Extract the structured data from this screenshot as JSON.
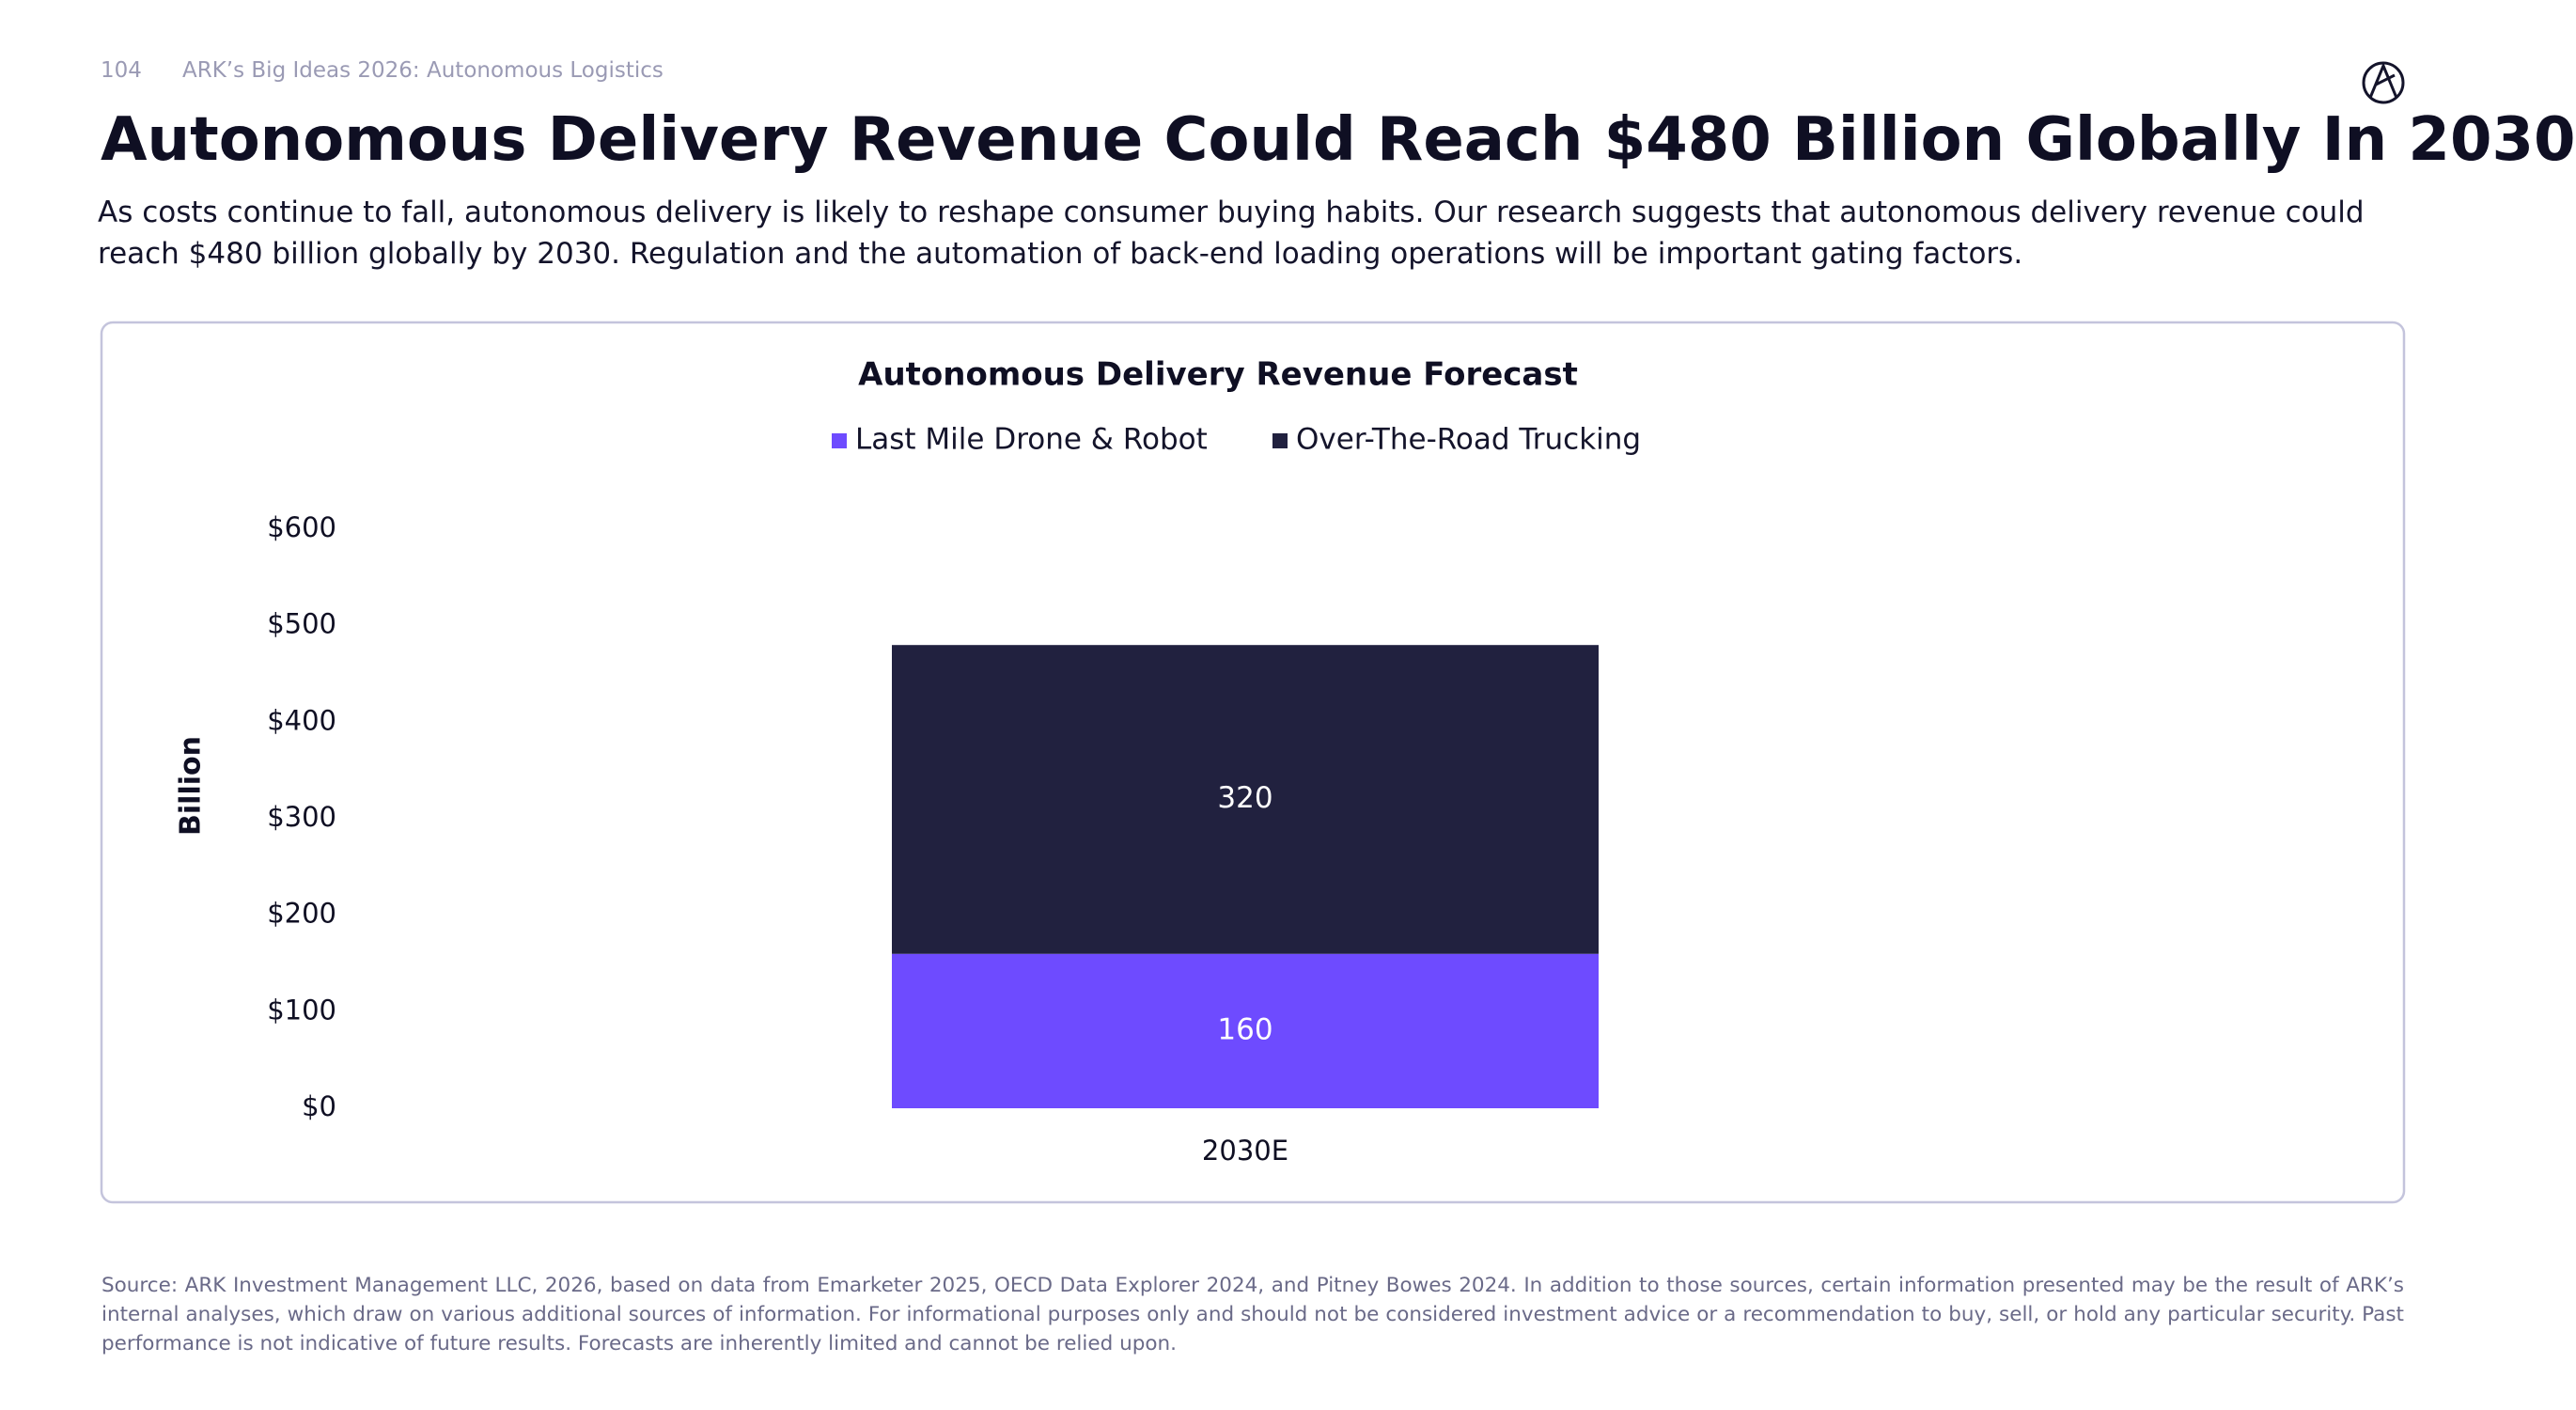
{
  "header": {
    "page_number": "104",
    "section": "ARK’s Big Ideas 2026: Autonomous Logistics"
  },
  "title": "Autonomous Delivery Revenue Could Reach $480 Billion Globally In 2030",
  "subtitle": "As costs continue to fall, autonomous delivery is likely to reshape consumer buying habits. Our research suggests that autonomous delivery revenue could reach $480 billion globally by 2030. Regulation and the automation of back-end loading operations will be important gating factors.",
  "chart_data": {
    "type": "bar",
    "stacked": true,
    "title": "Autonomous Delivery Revenue Forecast",
    "categories": [
      "2030E"
    ],
    "series": [
      {
        "name": "Last Mile Drone & Robot",
        "color": "#6e4bff",
        "values": [
          160
        ]
      },
      {
        "name": "Over-The-Road Trucking",
        "color": "#21213f",
        "values": [
          320
        ]
      }
    ],
    "ylabel": "Billion",
    "ylim": [
      0,
      600
    ],
    "yticks": [
      {
        "value": 0,
        "label": "$0"
      },
      {
        "value": 100,
        "label": "$100"
      },
      {
        "value": 200,
        "label": "$200"
      },
      {
        "value": 300,
        "label": "$300"
      },
      {
        "value": 400,
        "label": "$400"
      },
      {
        "value": 500,
        "label": "$500"
      },
      {
        "value": 600,
        "label": "$600"
      }
    ],
    "grid": false
  },
  "footnote": "Source: ARK Investment Management LLC, 2026, based on data from Emarketer 2025, OECD Data Explorer 2024, and Pitney Bowes 2024. In addition to those sources, certain information presented may be the result of ARK’s internal analyses, which draw on various additional sources of information. For informational purposes only and should not be considered investment advice or a recommendation to buy, sell, or hold any particular security. Past performance is not indicative of future results. Forecasts are inherently limited and cannot be relied upon."
}
